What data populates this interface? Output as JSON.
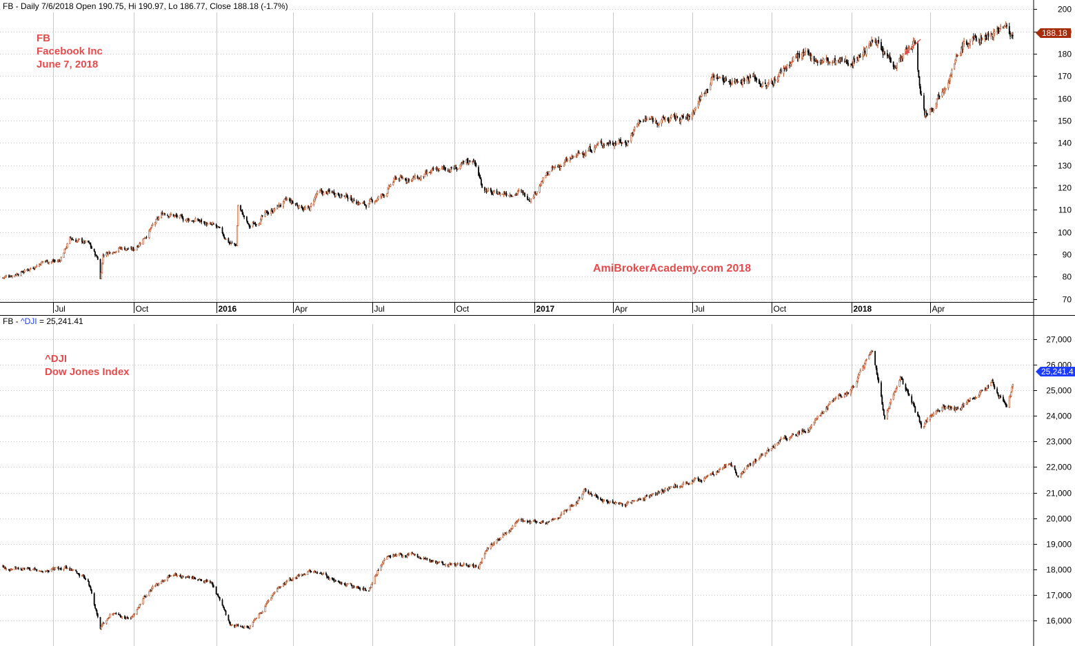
{
  "colors": {
    "up_candle": "#b84a1c",
    "down_candle": "#000000",
    "annotation": "#e84a4a",
    "fb_tag": "#a62c0a",
    "dji_tag": "#1c3dff",
    "dji_symbol": "#1c3dff",
    "grid": "#c8c8c8"
  },
  "top_pane": {
    "title": "FB - Daily 7/6/2018 Open 190.75, Hi 190.97, Lo 186.77, Close 188.18 (-1.7%)",
    "annotation_lines": [
      "FB",
      "Facebook Inc",
      "June 7, 2018"
    ],
    "watermark": "AmiBrokerAcademy.com  2018",
    "last_price_tag": "188.18"
  },
  "bottom_pane": {
    "title_prefix": "FB - ",
    "title_symbol": "^DJI",
    "title_suffix": " = 25,241.41",
    "annotation_lines": [
      "^DJI",
      "Dow Jones Index"
    ],
    "last_price_tag": "25,241.4"
  },
  "chart_data": [
    {
      "type": "candlestick",
      "symbol": "FB",
      "name": "Facebook Inc",
      "ylim": [
        68,
        202
      ],
      "y_ticks": [
        70,
        80,
        90,
        100,
        110,
        120,
        130,
        140,
        150,
        160,
        170,
        180,
        190,
        200
      ],
      "y_tick_labels": [
        "70",
        "80",
        "90",
        "100",
        "110",
        "120",
        "130",
        "140",
        "150",
        "160",
        "170",
        "180",
        "190",
        "200"
      ],
      "x_range": [
        "2015-05-04",
        "2018-07-18"
      ],
      "x_ticks": [
        {
          "label": "Jul",
          "date": "2015-07-01",
          "bold": false
        },
        {
          "label": "Oct",
          "date": "2015-10-01",
          "bold": false
        },
        {
          "label": "2016",
          "date": "2016-01-04",
          "bold": true
        },
        {
          "label": "Apr",
          "date": "2016-04-01",
          "bold": false
        },
        {
          "label": "Jul",
          "date": "2016-07-01",
          "bold": false
        },
        {
          "label": "Oct",
          "date": "2016-10-03",
          "bold": false
        },
        {
          "label": "2017",
          "date": "2017-01-03",
          "bold": true
        },
        {
          "label": "Apr",
          "date": "2017-04-03",
          "bold": false
        },
        {
          "label": "Jul",
          "date": "2017-07-03",
          "bold": false
        },
        {
          "label": "Oct",
          "date": "2017-10-02",
          "bold": false
        },
        {
          "label": "2018",
          "date": "2018-01-02",
          "bold": true
        },
        {
          "label": "Apr",
          "date": "2018-04-02",
          "bold": false
        }
      ],
      "path": [
        [
          "2015-05-04",
          79.5
        ],
        [
          "2015-06-01",
          83
        ],
        [
          "2015-06-20",
          87
        ],
        [
          "2015-07-08",
          87
        ],
        [
          "2015-07-20",
          97
        ],
        [
          "2015-08-10",
          95
        ],
        [
          "2015-08-21",
          88
        ],
        [
          "2015-08-24",
          79
        ],
        [
          "2015-08-27",
          90
        ],
        [
          "2015-09-15",
          93
        ],
        [
          "2015-10-01",
          92
        ],
        [
          "2015-10-20",
          101
        ],
        [
          "2015-11-05",
          109
        ],
        [
          "2015-11-25",
          106
        ],
        [
          "2015-12-15",
          105
        ],
        [
          "2016-01-04",
          102
        ],
        [
          "2016-01-20",
          95
        ],
        [
          "2016-01-27",
          94
        ],
        [
          "2016-01-29",
          112
        ],
        [
          "2016-02-11",
          102
        ],
        [
          "2016-03-01",
          108
        ],
        [
          "2016-03-25",
          114
        ],
        [
          "2016-04-20",
          110
        ],
        [
          "2016-04-28",
          117
        ],
        [
          "2016-05-20",
          118
        ],
        [
          "2016-06-24",
          112
        ],
        [
          "2016-07-15",
          117
        ],
        [
          "2016-07-28",
          124
        ],
        [
          "2016-08-25",
          124
        ],
        [
          "2016-09-15",
          128
        ],
        [
          "2016-10-10",
          129
        ],
        [
          "2016-10-25",
          133
        ],
        [
          "2016-11-04",
          121
        ],
        [
          "2016-11-15",
          117
        ],
        [
          "2016-12-15",
          118
        ],
        [
          "2016-12-30",
          115.5
        ],
        [
          "2017-01-20",
          127
        ],
        [
          "2017-02-20",
          134
        ],
        [
          "2017-03-15",
          139
        ],
        [
          "2017-04-05",
          141
        ],
        [
          "2017-04-18",
          140
        ],
        [
          "2017-05-05",
          150.5
        ],
        [
          "2017-05-25",
          150
        ],
        [
          "2017-06-15",
          151
        ],
        [
          "2017-06-30",
          151
        ],
        [
          "2017-07-12",
          160
        ],
        [
          "2017-07-27",
          170
        ],
        [
          "2017-08-15",
          168
        ],
        [
          "2017-09-10",
          170
        ],
        [
          "2017-09-27",
          165
        ],
        [
          "2017-10-15",
          173
        ],
        [
          "2017-10-31",
          179
        ],
        [
          "2017-11-20",
          178
        ],
        [
          "2017-12-10",
          176
        ],
        [
          "2017-12-29",
          176
        ],
        [
          "2018-01-16",
          181
        ],
        [
          "2018-01-31",
          187
        ],
        [
          "2018-02-06",
          180
        ],
        [
          "2018-02-22",
          176
        ],
        [
          "2018-03-16",
          185
        ],
        [
          "2018-03-20",
          168
        ],
        [
          "2018-03-27",
          153
        ],
        [
          "2018-04-05",
          157
        ],
        [
          "2018-04-26",
          172
        ],
        [
          "2018-05-10",
          184
        ],
        [
          "2018-06-05",
          188
        ],
        [
          "2018-06-25",
          193
        ],
        [
          "2018-07-06",
          188.18
        ]
      ]
    },
    {
      "type": "candlestick",
      "symbol": "^DJI",
      "name": "Dow Jones Index",
      "ylim": [
        15400,
        27600
      ],
      "y_ticks": [
        16000,
        17000,
        18000,
        19000,
        20000,
        21000,
        22000,
        23000,
        24000,
        25000,
        26000,
        27000
      ],
      "y_tick_labels": [
        "16,000",
        "17,000",
        "18,000",
        "19,000",
        "20,000",
        "21,000",
        "22,000",
        "23,000",
        "24,000",
        "25,000",
        "26,000",
        "27,000"
      ],
      "x_range": [
        "2015-05-04",
        "2018-07-18"
      ],
      "path": [
        [
          "2015-05-04",
          18100
        ],
        [
          "2015-06-15",
          17900
        ],
        [
          "2015-07-15",
          18050
        ],
        [
          "2015-08-10",
          17600
        ],
        [
          "2015-08-24",
          15700
        ],
        [
          "2015-09-05",
          16300
        ],
        [
          "2015-09-28",
          16050
        ],
        [
          "2015-10-20",
          17200
        ],
        [
          "2015-11-15",
          17800
        ],
        [
          "2015-12-15",
          17600
        ],
        [
          "2015-12-30",
          17500
        ],
        [
          "2016-01-20",
          15800
        ],
        [
          "2016-02-11",
          15700
        ],
        [
          "2016-03-15",
          17300
        ],
        [
          "2016-04-20",
          18000
        ],
        [
          "2016-05-20",
          17500
        ],
        [
          "2016-06-27",
          17200
        ],
        [
          "2016-07-15",
          18500
        ],
        [
          "2016-08-15",
          18600
        ],
        [
          "2016-09-15",
          18200
        ],
        [
          "2016-10-31",
          18100
        ],
        [
          "2016-11-10",
          18800
        ],
        [
          "2016-12-15",
          19850
        ],
        [
          "2017-01-20",
          19800
        ],
        [
          "2017-02-20",
          20600
        ],
        [
          "2017-03-01",
          21050
        ],
        [
          "2017-04-13",
          20450
        ],
        [
          "2017-05-15",
          20900
        ],
        [
          "2017-06-15",
          21300
        ],
        [
          "2017-07-20",
          21600
        ],
        [
          "2017-08-15",
          22100
        ],
        [
          "2017-08-25",
          21700
        ],
        [
          "2017-09-15",
          22250
        ],
        [
          "2017-10-15",
          23100
        ],
        [
          "2017-11-15",
          23500
        ],
        [
          "2017-12-15",
          24700
        ],
        [
          "2017-12-29",
          24800
        ],
        [
          "2018-01-26",
          26600
        ],
        [
          "2018-02-09",
          23900
        ],
        [
          "2018-02-27",
          25600
        ],
        [
          "2018-03-23",
          23600
        ],
        [
          "2018-04-15",
          24350
        ],
        [
          "2018-05-05",
          24300
        ],
        [
          "2018-06-12",
          25300
        ],
        [
          "2018-06-29",
          24300
        ],
        [
          "2018-07-06",
          25241.41
        ]
      ]
    }
  ]
}
